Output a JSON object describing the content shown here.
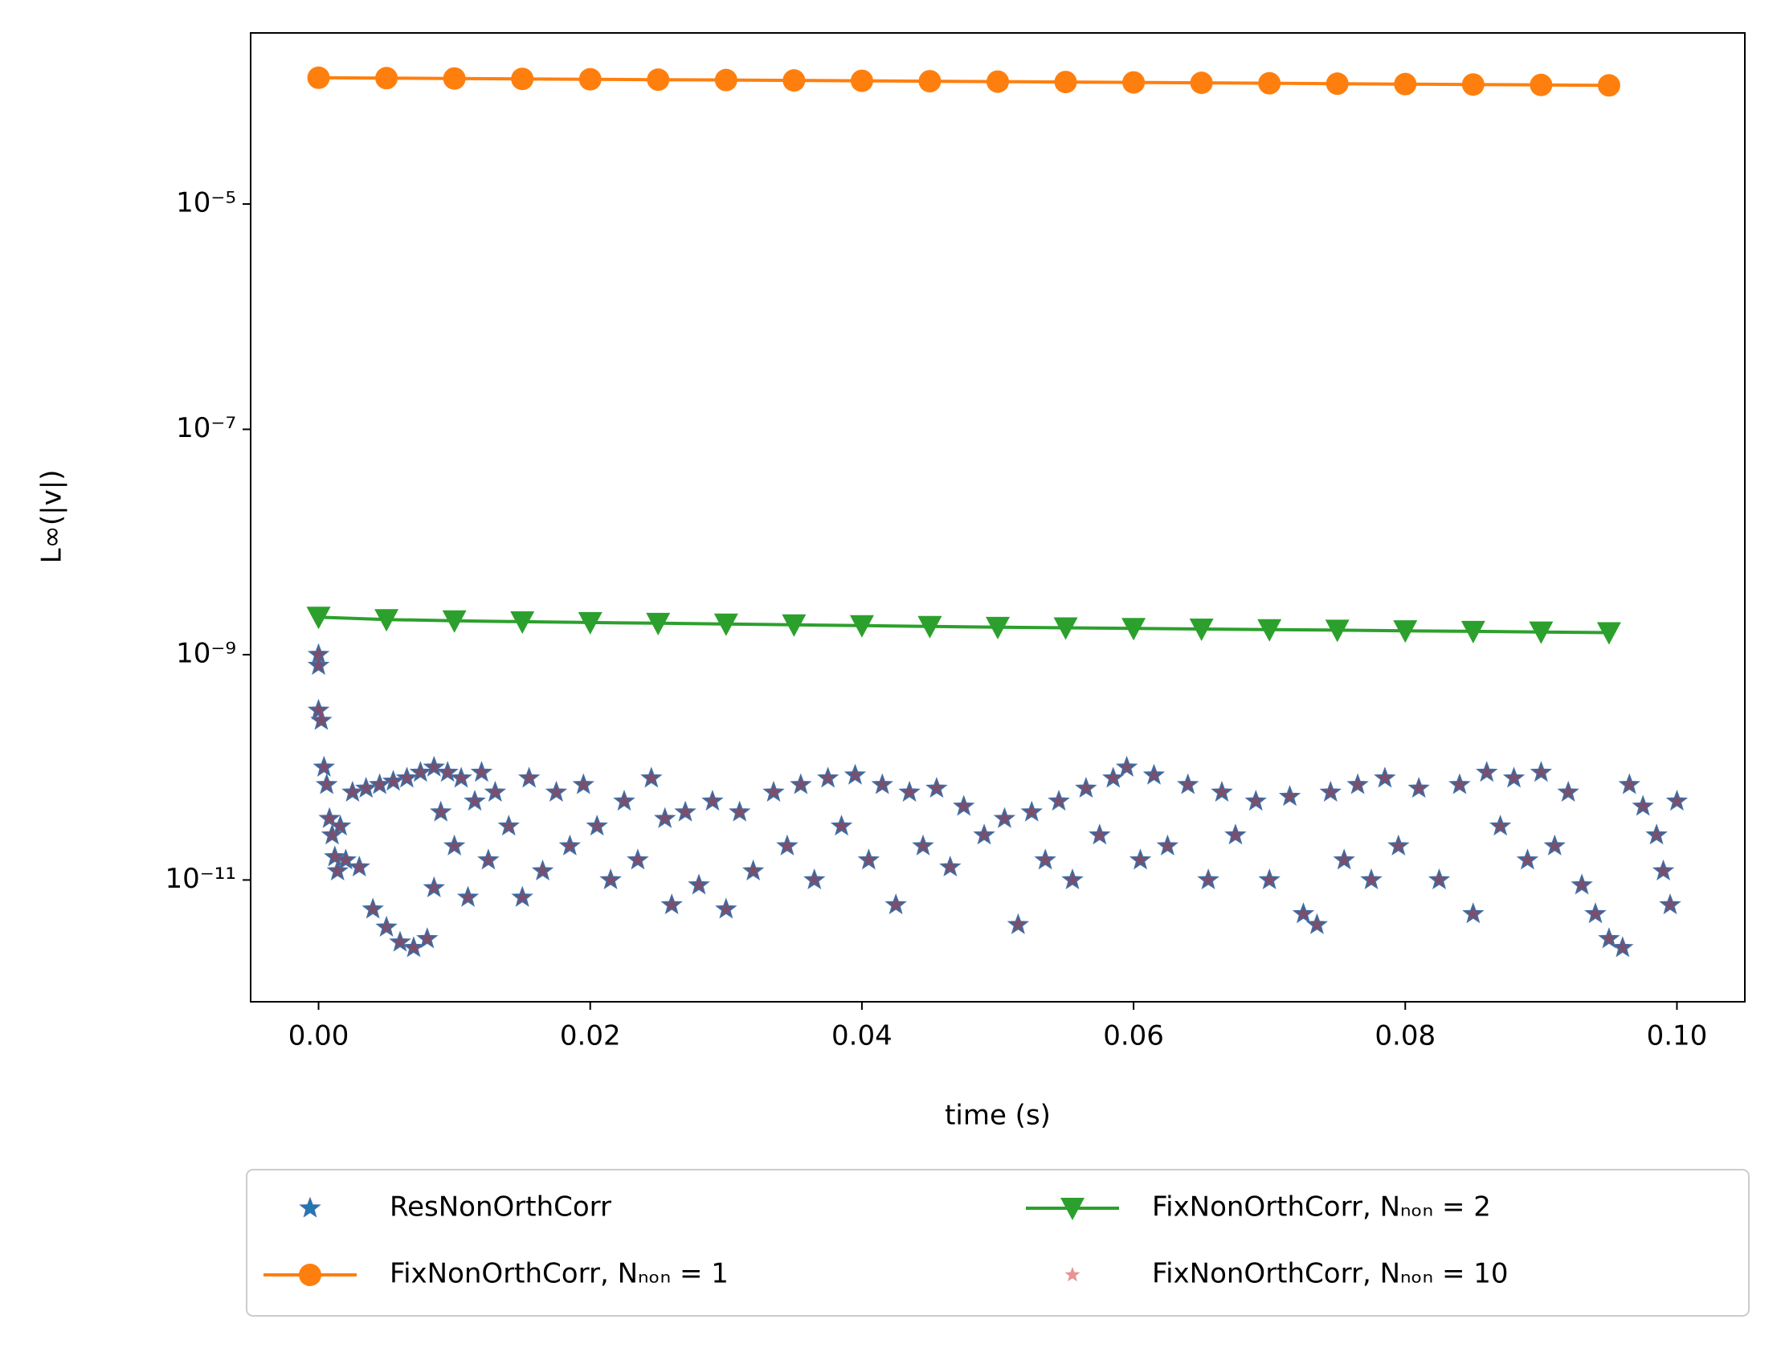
{
  "chart_data": {
    "type": "scatter",
    "xlabel": "time (s)",
    "ylabel": "L∞(|v|)",
    "xlim": [
      -0.005,
      0.105
    ],
    "ylim": [
      8.3e-13,
      0.00033
    ],
    "yscale": "log",
    "xticks": [
      {
        "value": 0,
        "label": "0.00"
      },
      0.02,
      0.04,
      0.06,
      0.08,
      {
        "value": 0.1,
        "label": "0.10"
      }
    ],
    "yticks": [
      {
        "value": 1e-11,
        "label": "10⁻¹¹"
      },
      {
        "value": 1e-09,
        "label": "10⁻⁹"
      },
      {
        "value": 1e-07,
        "label": "10⁻⁷"
      },
      {
        "value": 1e-05,
        "label": "10⁻⁵"
      }
    ],
    "legend": "below",
    "series": [
      {
        "name": "ResNonOrthCorr",
        "color": "#1f77b4",
        "marker": "star",
        "line": false,
        "alpha": 1,
        "x": [
          0,
          0,
          0,
          0.0002,
          0.0004,
          0.0006,
          0.0008,
          0.001,
          0.0012,
          0.0014,
          0.0016,
          0.002,
          0.0025,
          0.003,
          0.0035,
          0.004,
          0.0045,
          0.005,
          0.0055,
          0.006,
          0.0065,
          0.007,
          0.0075,
          0.008,
          0.0085,
          0.0085,
          0.009,
          0.0095,
          0.01,
          0.0105,
          0.011,
          0.0115,
          0.012,
          0.0125,
          0.013,
          0.014,
          0.015,
          0.0155,
          0.0165,
          0.0175,
          0.0185,
          0.0195,
          0.0205,
          0.0215,
          0.0225,
          0.0235,
          0.0245,
          0.0255,
          0.026,
          0.027,
          0.028,
          0.029,
          0.03,
          0.031,
          0.032,
          0.0335,
          0.0345,
          0.0355,
          0.0365,
          0.0375,
          0.0385,
          0.0395,
          0.0405,
          0.0415,
          0.0425,
          0.0435,
          0.0445,
          0.0455,
          0.0465,
          0.0475,
          0.049,
          0.0505,
          0.0515,
          0.0525,
          0.0535,
          0.0545,
          0.0555,
          0.0565,
          0.0575,
          0.0585,
          0.0595,
          0.0605,
          0.0615,
          0.0625,
          0.064,
          0.0655,
          0.0665,
          0.0675,
          0.069,
          0.07,
          0.0715,
          0.0725,
          0.0735,
          0.0745,
          0.0755,
          0.0765,
          0.0775,
          0.0785,
          0.0795,
          0.081,
          0.0825,
          0.084,
          0.085,
          0.086,
          0.087,
          0.088,
          0.089,
          0.09,
          0.091,
          0.092,
          0.093,
          0.094,
          0.095,
          0.096,
          0.0965,
          0.0975,
          0.0985,
          0.099,
          0.0995,
          0.1
        ],
        "values": [
          1e-09,
          8e-10,
          3.2e-10,
          2.6e-10,
          1e-10,
          7e-11,
          3.5e-11,
          2.5e-11,
          1.6e-11,
          1.2e-11,
          3e-11,
          1.5e-11,
          6e-11,
          1.3e-11,
          6.5e-11,
          5.5e-12,
          7e-11,
          3.8e-12,
          7.5e-11,
          2.8e-12,
          8e-11,
          2.5e-12,
          9e-11,
          3e-12,
          1e-10,
          8.5e-12,
          4e-11,
          9e-11,
          2e-11,
          8e-11,
          7e-12,
          5e-11,
          9e-11,
          1.5e-11,
          6e-11,
          3e-11,
          7e-12,
          8e-11,
          1.2e-11,
          6e-11,
          2e-11,
          7e-11,
          3e-11,
          1e-11,
          5e-11,
          1.5e-11,
          8e-11,
          3.5e-11,
          6e-12,
          4e-11,
          9e-12,
          5e-11,
          5.5e-12,
          4e-11,
          1.2e-11,
          6e-11,
          2e-11,
          7e-11,
          1e-11,
          8e-11,
          3e-11,
          8.5e-11,
          1.5e-11,
          7e-11,
          6e-12,
          6e-11,
          2e-11,
          6.5e-11,
          1.3e-11,
          4.5e-11,
          2.5e-11,
          3.5e-11,
          4e-12,
          4e-11,
          1.5e-11,
          5e-11,
          1e-11,
          6.5e-11,
          2.5e-11,
          8e-11,
          1e-10,
          1.5e-11,
          8.5e-11,
          2e-11,
          7e-11,
          1e-11,
          6e-11,
          2.5e-11,
          5e-11,
          1e-11,
          5.5e-11,
          5e-12,
          4e-12,
          6e-11,
          1.5e-11,
          7e-11,
          1e-11,
          8e-11,
          2e-11,
          6.5e-11,
          1e-11,
          7e-11,
          5e-12,
          9e-11,
          3e-11,
          8e-11,
          1.5e-11,
          9e-11,
          2e-11,
          6e-11,
          9e-12,
          5e-12,
          3e-12,
          2.5e-12,
          7e-11,
          4.5e-11,
          2.5e-11,
          1.2e-11,
          6e-12,
          5e-11
        ]
      },
      {
        "name": "FixNonOrthCorr, Nₙₒₙ = 1",
        "color": "#ff7f0e",
        "marker": "circle",
        "line": true,
        "alpha": 1,
        "x": [
          0,
          0.005,
          0.01,
          0.015,
          0.02,
          0.025,
          0.03,
          0.035,
          0.04,
          0.045,
          0.05,
          0.055,
          0.06,
          0.065,
          0.07,
          0.075,
          0.08,
          0.085,
          0.09,
          0.095
        ],
        "values": [
          0.000132,
          0.000131,
          0.00013,
          0.000129,
          0.000128,
          0.000127,
          0.000126,
          0.000125,
          0.000124,
          0.000123,
          0.000122,
          0.000121,
          0.00012,
          0.000119,
          0.000118,
          0.000117,
          0.000116,
          0.000115,
          0.000114,
          0.000113
        ]
      },
      {
        "name": "FixNonOrthCorr, Nₙₒₙ = 2",
        "color": "#2ca02c",
        "marker": "triangle_down",
        "line": true,
        "alpha": 1,
        "x": [
          0,
          0.005,
          0.01,
          0.015,
          0.02,
          0.025,
          0.03,
          0.035,
          0.04,
          0.045,
          0.05,
          0.055,
          0.06,
          0.065,
          0.07,
          0.075,
          0.08,
          0.085,
          0.09,
          0.095
        ],
        "values": [
          2.15e-09,
          2.05e-09,
          2e-09,
          1.96e-09,
          1.93e-09,
          1.9e-09,
          1.87e-09,
          1.84e-09,
          1.81e-09,
          1.78e-09,
          1.75e-09,
          1.73e-09,
          1.71e-09,
          1.69e-09,
          1.67e-09,
          1.65e-09,
          1.63e-09,
          1.61e-09,
          1.59e-09,
          1.57e-09
        ]
      },
      {
        "name": "FixNonOrthCorr, Nₙₒₙ = 10",
        "color": "#d62728",
        "marker": "star",
        "line": false,
        "alpha": 0.5,
        "x": [
          0,
          0,
          0,
          0.0002,
          0.0004,
          0.0006,
          0.0008,
          0.001,
          0.0012,
          0.0014,
          0.0016,
          0.002,
          0.0025,
          0.003,
          0.0035,
          0.004,
          0.0045,
          0.005,
          0.0055,
          0.006,
          0.0065,
          0.007,
          0.0075,
          0.008,
          0.0085,
          0.0085,
          0.009,
          0.0095,
          0.01,
          0.0105,
          0.011,
          0.0115,
          0.012,
          0.0125,
          0.013,
          0.014,
          0.015,
          0.0155,
          0.0165,
          0.0175,
          0.0185,
          0.0195,
          0.0205,
          0.0215,
          0.0225,
          0.0235,
          0.0245,
          0.0255,
          0.026,
          0.027,
          0.028,
          0.029,
          0.03,
          0.031,
          0.032,
          0.0335,
          0.0345,
          0.0355,
          0.0365,
          0.0375,
          0.0385,
          0.0395,
          0.0405,
          0.0415,
          0.0425,
          0.0435,
          0.0445,
          0.0455,
          0.0465,
          0.0475,
          0.049,
          0.0505,
          0.0515,
          0.0525,
          0.0535,
          0.0545,
          0.0555,
          0.0565,
          0.0575,
          0.0585,
          0.0595,
          0.0605,
          0.0615,
          0.0625,
          0.064,
          0.0655,
          0.0665,
          0.0675,
          0.069,
          0.07,
          0.0715,
          0.0725,
          0.0735,
          0.0745,
          0.0755,
          0.0765,
          0.0775,
          0.0785,
          0.0795,
          0.081,
          0.0825,
          0.084,
          0.085,
          0.086,
          0.087,
          0.088,
          0.089,
          0.09,
          0.091,
          0.092,
          0.093,
          0.094,
          0.095,
          0.096,
          0.0965,
          0.0975,
          0.0985,
          0.099,
          0.0995,
          0.1
        ],
        "values": [
          1e-09,
          8e-10,
          3.2e-10,
          2.6e-10,
          1e-10,
          7e-11,
          3.5e-11,
          2.5e-11,
          1.6e-11,
          1.2e-11,
          3e-11,
          1.5e-11,
          6e-11,
          1.3e-11,
          6.5e-11,
          5.5e-12,
          7e-11,
          3.8e-12,
          7.5e-11,
          2.8e-12,
          8e-11,
          2.5e-12,
          9e-11,
          3e-12,
          1e-10,
          8.5e-12,
          4e-11,
          9e-11,
          2e-11,
          8e-11,
          7e-12,
          5e-11,
          9e-11,
          1.5e-11,
          6e-11,
          3e-11,
          7e-12,
          8e-11,
          1.2e-11,
          6e-11,
          2e-11,
          7e-11,
          3e-11,
          1e-11,
          5e-11,
          1.5e-11,
          8e-11,
          3.5e-11,
          6e-12,
          4e-11,
          9e-12,
          5e-11,
          5.5e-12,
          4e-11,
          1.2e-11,
          6e-11,
          2e-11,
          7e-11,
          1e-11,
          8e-11,
          3e-11,
          8.5e-11,
          1.5e-11,
          7e-11,
          6e-12,
          6e-11,
          2e-11,
          6.5e-11,
          1.3e-11,
          4.5e-11,
          2.5e-11,
          3.5e-11,
          4e-12,
          4e-11,
          1.5e-11,
          5e-11,
          1e-11,
          6.5e-11,
          2.5e-11,
          8e-11,
          1e-10,
          1.5e-11,
          8.5e-11,
          2e-11,
          7e-11,
          1e-11,
          6e-11,
          2.5e-11,
          5e-11,
          1e-11,
          5.5e-11,
          5e-12,
          4e-12,
          6e-11,
          1.5e-11,
          7e-11,
          1e-11,
          8e-11,
          2e-11,
          6.5e-11,
          1e-11,
          7e-11,
          5e-12,
          9e-11,
          3e-11,
          8e-11,
          1.5e-11,
          9e-11,
          2e-11,
          6e-11,
          9e-12,
          5e-12,
          3e-12,
          2.5e-12,
          7e-11,
          4.5e-11,
          2.5e-11,
          1.2e-11,
          6e-12,
          5e-11
        ]
      }
    ]
  }
}
